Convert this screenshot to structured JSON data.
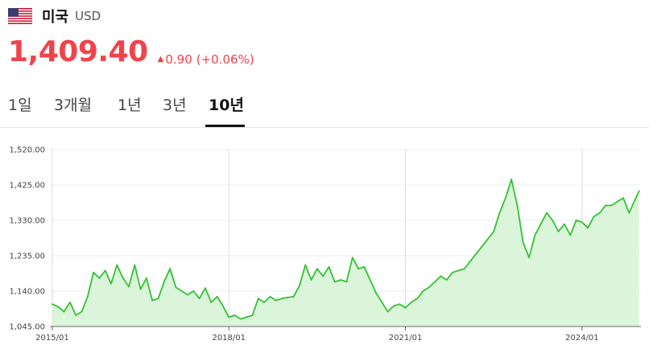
{
  "header": {
    "flag_icon": "us-flag-icon",
    "country": "미국",
    "currency": "USD"
  },
  "quote": {
    "price": "1,409.40",
    "change_direction": "up",
    "change_value": "0.90",
    "change_percent": "(+0.06%)",
    "color_up": "#f0434b"
  },
  "tabs": [
    {
      "label": "1일",
      "active": false
    },
    {
      "label": "3개월",
      "active": false
    },
    {
      "label": "1년",
      "active": false
    },
    {
      "label": "3년",
      "active": false
    },
    {
      "label": "10년",
      "active": true
    }
  ],
  "chart_data": {
    "type": "area",
    "title": "",
    "xlabel": "",
    "ylabel": "",
    "x_tick_labels": [
      "2015/01",
      "2018/01",
      "2021/01",
      "2024/01"
    ],
    "y_tick_labels": [
      "1,045.00",
      "1,140.00",
      "1,235.00",
      "1,330.00",
      "1,425.00",
      "1,520.00"
    ],
    "y_ticks": [
      1045,
      1140,
      1235,
      1330,
      1425,
      1520
    ],
    "ylim": [
      1045,
      1520
    ],
    "xlim": [
      2014.96,
      2025.0
    ],
    "grid": true,
    "line_color": "#33c133",
    "fill_color": "#daf5da",
    "series": [
      {
        "x": [
          2015.0,
          2015.1,
          2015.2,
          2015.3,
          2015.4,
          2015.5,
          2015.6,
          2015.7,
          2015.8,
          2015.9,
          2016.0,
          2016.1,
          2016.2,
          2016.3,
          2016.4,
          2016.5,
          2016.6,
          2016.7,
          2016.8,
          2016.9,
          2017.0,
          2017.1,
          2017.2,
          2017.3,
          2017.4,
          2017.5,
          2017.6,
          2017.7,
          2017.8,
          2017.9,
          2018.0,
          2018.1,
          2018.2,
          2018.3,
          2018.4,
          2018.5,
          2018.6,
          2018.7,
          2018.8,
          2018.9,
          2019.0,
          2019.1,
          2019.2,
          2019.3,
          2019.4,
          2019.5,
          2019.6,
          2019.7,
          2019.8,
          2019.9,
          2020.0,
          2020.1,
          2020.2,
          2020.3,
          2020.4,
          2020.5,
          2020.6,
          2020.7,
          2020.8,
          2020.9,
          2021.0,
          2021.1,
          2021.2,
          2021.3,
          2021.4,
          2021.5,
          2021.6,
          2021.7,
          2021.8,
          2021.9,
          2022.0,
          2022.1,
          2022.2,
          2022.3,
          2022.4,
          2022.5,
          2022.6,
          2022.7,
          2022.8,
          2022.9,
          2023.0,
          2023.1,
          2023.2,
          2023.3,
          2023.4,
          2023.5,
          2023.6,
          2023.7,
          2023.8,
          2023.9,
          2024.0,
          2024.1,
          2024.2,
          2024.3,
          2024.4,
          2024.5,
          2024.6,
          2024.7,
          2024.8,
          2024.9,
          2024.97
        ],
        "values": [
          1105,
          1098,
          1085,
          1110,
          1075,
          1085,
          1125,
          1190,
          1175,
          1195,
          1160,
          1210,
          1175,
          1152,
          1210,
          1145,
          1175,
          1115,
          1120,
          1165,
          1200,
          1150,
          1140,
          1130,
          1140,
          1120,
          1148,
          1110,
          1125,
          1100,
          1070,
          1075,
          1065,
          1070,
          1075,
          1120,
          1110,
          1125,
          1115,
          1120,
          1123,
          1125,
          1155,
          1210,
          1170,
          1200,
          1180,
          1205,
          1165,
          1170,
          1165,
          1230,
          1200,
          1205,
          1170,
          1135,
          1110,
          1085,
          1100,
          1105,
          1095,
          1110,
          1120,
          1140,
          1150,
          1165,
          1180,
          1170,
          1190,
          1195,
          1200,
          1220,
          1240,
          1260,
          1280,
          1300,
          1350,
          1390,
          1440,
          1370,
          1270,
          1230,
          1290,
          1320,
          1350,
          1330,
          1300,
          1320,
          1290,
          1330,
          1325,
          1310,
          1340,
          1350,
          1370,
          1370,
          1380,
          1390,
          1350,
          1385,
          1409
        ]
      }
    ]
  }
}
